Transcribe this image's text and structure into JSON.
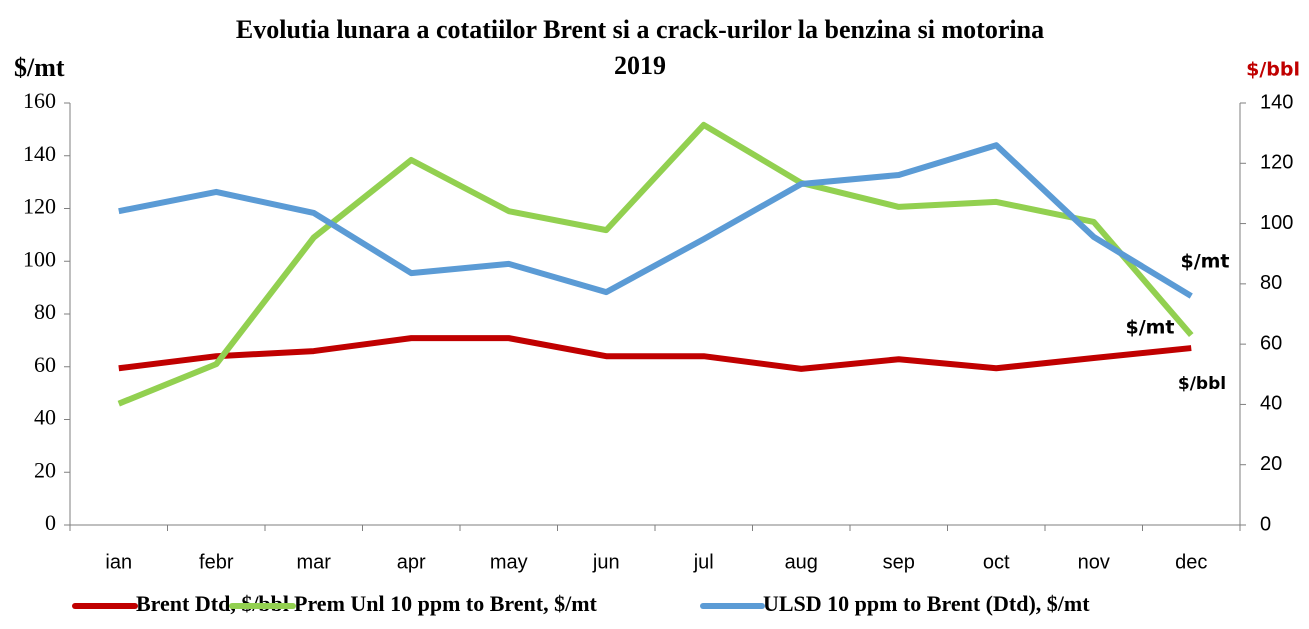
{
  "chart_data": {
    "type": "line",
    "title": [
      "Evolutia lunara a cotatiilor Brent si a crack-urilor la benzina si motorina",
      "2019"
    ],
    "y_label": "$/mt",
    "y2_label": "$/bbl",
    "categories": [
      "ian",
      "febr",
      "mar",
      "apr",
      "may",
      "jun",
      "jul",
      "aug",
      "sep",
      "oct",
      "nov",
      "dec"
    ],
    "series": [
      {
        "name": "Brent Dtd, $/bbl",
        "color": "#c00000",
        "axis": "y2",
        "values": [
          52,
          56,
          57.7,
          62,
          62,
          56,
          56,
          51.8,
          55,
          52,
          55.4,
          58.7
        ]
      },
      {
        "name": "Prem Unl 10 ppm to Brent, $/mt",
        "color": "#92d050",
        "values": [
          46,
          61,
          109,
          138.4,
          119,
          111.8,
          151.7,
          129.7,
          120.6,
          122.5,
          114.9,
          72
        ]
      },
      {
        "name": "ULSD 10 ppm to Brent (Dtd), $/mt",
        "color": "#5b9bd5",
        "values": [
          119,
          126.3,
          118.3,
          95.5,
          99,
          88.3,
          108.4,
          129.3,
          132.7,
          144,
          109.2,
          86.8
        ]
      }
    ],
    "ylim": [
      0,
      160
    ],
    "yticks": [
      0,
      20,
      40,
      60,
      80,
      100,
      120,
      140,
      160
    ],
    "y2lim": [
      0,
      140
    ],
    "y2ticks": [
      0,
      20,
      40,
      60,
      80,
      100,
      120,
      140
    ],
    "annotations": [
      "$/mt",
      "$/mt",
      "$/bbl"
    ],
    "legend": "bottom"
  }
}
